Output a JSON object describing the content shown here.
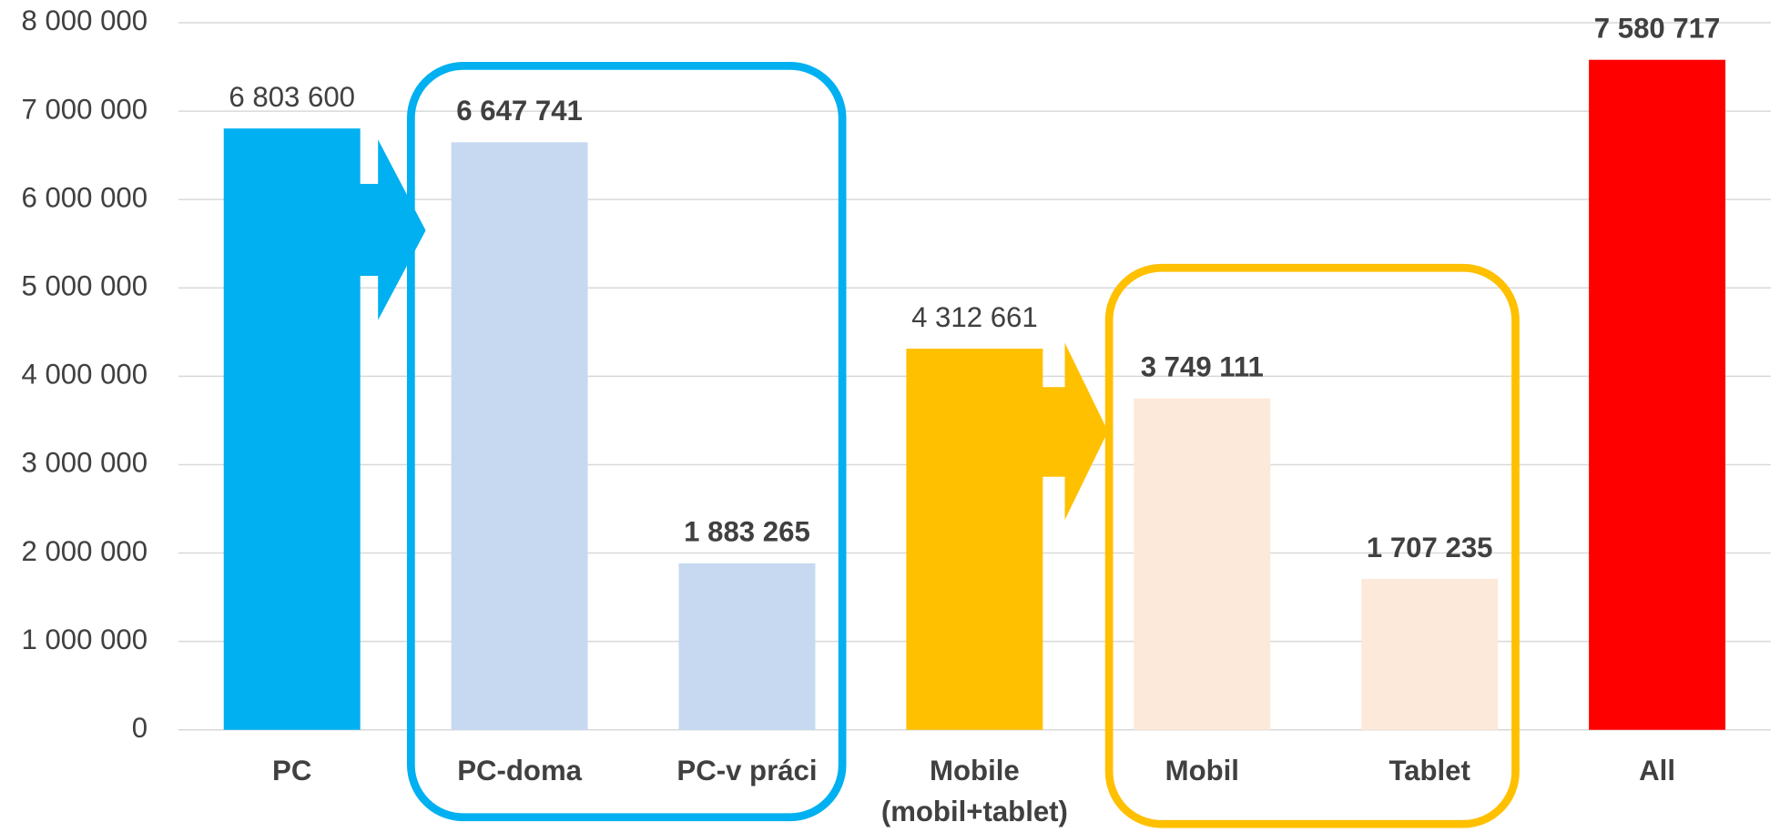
{
  "chart_data": {
    "type": "bar",
    "categories": [
      "PC",
      "PC-doma",
      "PC-v práci",
      "Mobile (mobil+tablet)",
      "Mobil",
      "Tablet",
      "All"
    ],
    "values": [
      6803600,
      6647741,
      1883265,
      4312661,
      3749111,
      1707235,
      7580717
    ],
    "value_labels": [
      "6 803 600",
      "6 647 741",
      "1 883 265",
      "4 312 661",
      "3 749 111",
      "1 707 235",
      "7 580 717"
    ],
    "value_label_bold": [
      false,
      true,
      true,
      false,
      true,
      true,
      true
    ],
    "colors": [
      "#00b0f0",
      "#c6d9f1",
      "#c6d9f1",
      "#ffc000",
      "#fde9d9",
      "#fde9d9",
      "#ff0000"
    ],
    "ylim": [
      0,
      8000000
    ],
    "yticks": [
      {
        "value": 0,
        "label": "0"
      },
      {
        "value": 1000000,
        "label": "1 000 000"
      },
      {
        "value": 2000000,
        "label": "2 000 000"
      },
      {
        "value": 3000000,
        "label": "3 000 000"
      },
      {
        "value": 4000000,
        "label": "4 000 000"
      },
      {
        "value": 5000000,
        "label": "5 000 000"
      },
      {
        "value": 6000000,
        "label": "6 000 000"
      },
      {
        "value": 7000000,
        "label": "7 000 000"
      },
      {
        "value": 8000000,
        "label": "8 000 000"
      }
    ],
    "grid": true
  }
}
